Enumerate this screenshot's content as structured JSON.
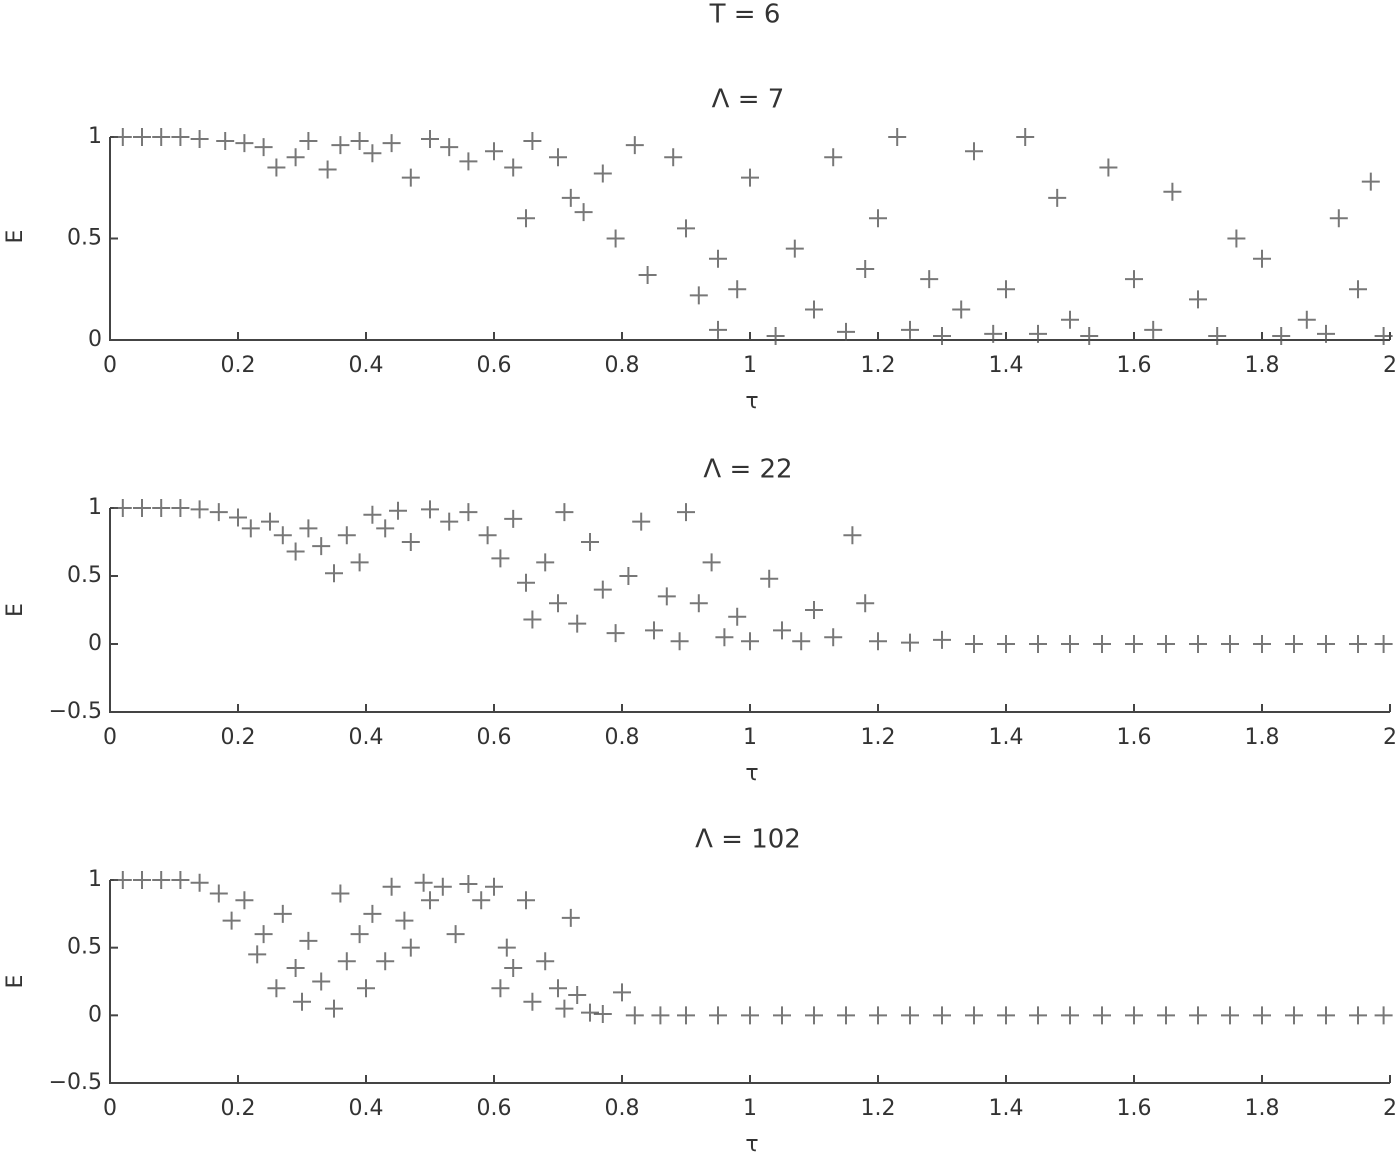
{
  "title": "T = 6",
  "chart_data": [
    {
      "type": "scatter",
      "title": "Λ = 7",
      "xlabel": "τ",
      "ylabel": "E",
      "color": "#555555",
      "marker": "+",
      "xlim": [
        0,
        2
      ],
      "xticks": [
        0,
        0.2,
        0.4,
        0.6,
        0.8,
        1,
        1.2,
        1.4,
        1.6,
        1.8,
        2
      ],
      "ylim": [
        0,
        1
      ],
      "yticks": [
        0,
        0.5,
        1
      ],
      "x": [
        0.02,
        0.05,
        0.08,
        0.11,
        0.14,
        0.18,
        0.21,
        0.24,
        0.26,
        0.29,
        0.31,
        0.34,
        0.36,
        0.39,
        0.41,
        0.44,
        0.47,
        0.5,
        0.53,
        0.56,
        0.6,
        0.63,
        0.66,
        0.65,
        0.7,
        0.72,
        0.74,
        0.77,
        0.79,
        0.82,
        0.84,
        0.88,
        0.9,
        0.92,
        0.95,
        0.95,
        0.98,
        1.0,
        1.04,
        1.07,
        1.1,
        1.13,
        1.15,
        1.18,
        1.2,
        1.23,
        1.25,
        1.28,
        1.3,
        1.33,
        1.35,
        1.38,
        1.4,
        1.43,
        1.45,
        1.48,
        1.5,
        1.53,
        1.56,
        1.6,
        1.63,
        1.66,
        1.7,
        1.73,
        1.76,
        1.8,
        1.83,
        1.87,
        1.9,
        1.92,
        1.95,
        1.97,
        1.99
      ],
      "values": [
        1,
        1,
        1,
        1,
        0.99,
        0.98,
        0.97,
        0.95,
        0.85,
        0.9,
        0.98,
        0.84,
        0.96,
        0.98,
        0.92,
        0.97,
        0.8,
        0.99,
        0.95,
        0.88,
        0.93,
        0.85,
        0.98,
        0.6,
        0.9,
        0.7,
        0.63,
        0.82,
        0.5,
        0.96,
        0.32,
        0.9,
        0.55,
        0.22,
        0.4,
        0.05,
        0.25,
        0.8,
        0.02,
        0.45,
        0.15,
        0.9,
        0.04,
        0.35,
        0.6,
        1.0,
        0.05,
        0.3,
        0.02,
        0.15,
        0.93,
        0.03,
        0.25,
        1.0,
        0.03,
        0.7,
        0.1,
        0.02,
        0.85,
        0.3,
        0.05,
        0.73,
        0.2,
        0.02,
        0.5,
        0.4,
        0.02,
        0.1,
        0.03,
        0.6,
        0.25,
        0.78,
        0.02
      ]
    },
    {
      "type": "scatter",
      "title": "Λ = 22",
      "xlabel": "τ",
      "ylabel": "E",
      "color": "#555555",
      "marker": "+",
      "xlim": [
        0,
        2
      ],
      "xticks": [
        0,
        0.2,
        0.4,
        0.6,
        0.8,
        1,
        1.2,
        1.4,
        1.6,
        1.8,
        2
      ],
      "ylim": [
        -0.5,
        1
      ],
      "yticks": [
        {
          "value": -0.5,
          "label": "−0.5"
        },
        0,
        0.5,
        1
      ],
      "x": [
        0.02,
        0.05,
        0.08,
        0.11,
        0.14,
        0.17,
        0.2,
        0.22,
        0.25,
        0.27,
        0.29,
        0.31,
        0.33,
        0.35,
        0.37,
        0.39,
        0.41,
        0.43,
        0.45,
        0.47,
        0.5,
        0.53,
        0.56,
        0.59,
        0.61,
        0.63,
        0.65,
        0.66,
        0.68,
        0.7,
        0.71,
        0.73,
        0.75,
        0.77,
        0.79,
        0.81,
        0.83,
        0.85,
        0.87,
        0.89,
        0.9,
        0.92,
        0.94,
        0.96,
        0.98,
        1.0,
        1.03,
        1.05,
        1.08,
        1.1,
        1.13,
        1.16,
        1.18,
        1.2,
        1.25,
        1.3,
        1.35,
        1.4,
        1.45,
        1.5,
        1.55,
        1.6,
        1.65,
        1.7,
        1.75,
        1.8,
        1.85,
        1.9,
        1.95,
        1.99
      ],
      "values": [
        1,
        1,
        1,
        1,
        0.99,
        0.97,
        0.93,
        0.85,
        0.9,
        0.8,
        0.68,
        0.85,
        0.72,
        0.52,
        0.8,
        0.6,
        0.95,
        0.85,
        0.98,
        0.75,
        0.99,
        0.9,
        0.97,
        0.8,
        0.63,
        0.92,
        0.45,
        0.18,
        0.6,
        0.3,
        0.97,
        0.15,
        0.75,
        0.4,
        0.08,
        0.5,
        0.9,
        0.1,
        0.35,
        0.02,
        0.97,
        0.3,
        0.6,
        0.05,
        0.2,
        0.02,
        0.48,
        0.1,
        0.02,
        0.25,
        0.05,
        0.8,
        0.3,
        0.02,
        0.01,
        0.03,
        0,
        0,
        0,
        0,
        0,
        0,
        0,
        0,
        0,
        0,
        0,
        0,
        0,
        0
      ]
    },
    {
      "type": "scatter",
      "title": "Λ = 102",
      "xlabel": "τ",
      "ylabel": "E",
      "color": "#555555",
      "marker": "+",
      "xlim": [
        0,
        2
      ],
      "xticks": [
        0,
        0.2,
        0.4,
        0.6,
        0.8,
        1,
        1.2,
        1.4,
        1.6,
        1.8,
        2
      ],
      "ylim": [
        -0.5,
        1
      ],
      "yticks": [
        {
          "value": -0.5,
          "label": "−0.5"
        },
        0,
        0.5,
        1
      ],
      "x": [
        0.02,
        0.05,
        0.08,
        0.11,
        0.14,
        0.17,
        0.19,
        0.21,
        0.23,
        0.24,
        0.26,
        0.27,
        0.29,
        0.3,
        0.31,
        0.33,
        0.35,
        0.36,
        0.37,
        0.39,
        0.4,
        0.41,
        0.43,
        0.44,
        0.46,
        0.47,
        0.49,
        0.5,
        0.52,
        0.54,
        0.56,
        0.58,
        0.6,
        0.61,
        0.62,
        0.63,
        0.65,
        0.66,
        0.68,
        0.7,
        0.71,
        0.72,
        0.73,
        0.75,
        0.77,
        0.8,
        0.82,
        0.86,
        0.9,
        0.95,
        1.0,
        1.05,
        1.1,
        1.15,
        1.2,
        1.25,
        1.3,
        1.35,
        1.4,
        1.45,
        1.5,
        1.55,
        1.6,
        1.65,
        1.7,
        1.75,
        1.8,
        1.85,
        1.9,
        1.95,
        1.99
      ],
      "values": [
        1,
        1,
        1,
        1,
        0.98,
        0.9,
        0.7,
        0.85,
        0.45,
        0.6,
        0.2,
        0.75,
        0.35,
        0.1,
        0.55,
        0.25,
        0.05,
        0.9,
        0.4,
        0.6,
        0.2,
        0.75,
        0.4,
        0.95,
        0.7,
        0.5,
        0.98,
        0.85,
        0.95,
        0.6,
        0.97,
        0.85,
        0.95,
        0.2,
        0.5,
        0.35,
        0.85,
        0.1,
        0.4,
        0.2,
        0.05,
        0.72,
        0.15,
        0.02,
        0.01,
        0.17,
        0,
        0,
        0,
        0,
        0,
        0,
        0,
        0,
        0,
        0,
        0,
        0,
        0,
        0,
        0,
        0,
        0,
        0,
        0,
        0,
        0,
        0,
        0,
        0,
        0
      ]
    }
  ]
}
